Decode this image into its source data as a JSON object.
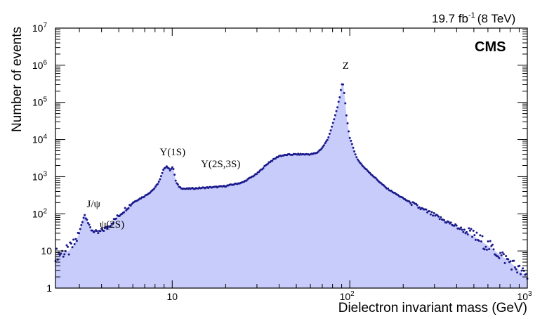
{
  "chart_data": {
    "type": "area",
    "title": "",
    "luminosity_label": "19.7 fb",
    "luminosity_exponent": "-1",
    "energy_label": "(8 TeV)",
    "experiment_label": "CMS",
    "xlabel": "Dielectron invariant mass (GeV)",
    "ylabel": "Number of events",
    "xscale": "log",
    "yscale": "log",
    "xlim": [
      2.2,
      1000
    ],
    "ylim": [
      1,
      10000000
    ],
    "x_ticks": [
      {
        "value": 10,
        "label": "10"
      },
      {
        "value": 100,
        "label": "10",
        "exp": "2"
      },
      {
        "value": 1000,
        "label": "10",
        "exp": "3"
      }
    ],
    "y_ticks": [
      {
        "value": 1,
        "label": "1"
      },
      {
        "value": 10,
        "label": "10"
      },
      {
        "value": 100,
        "label": "10",
        "exp": "2"
      },
      {
        "value": 1000,
        "label": "10",
        "exp": "3"
      },
      {
        "value": 10000,
        "label": "10",
        "exp": "4"
      },
      {
        "value": 100000,
        "label": "10",
        "exp": "5"
      },
      {
        "value": 1000000,
        "label": "10",
        "exp": "6"
      },
      {
        "value": 10000000,
        "label": "10",
        "exp": "7"
      }
    ],
    "grid": false,
    "fill_color": "#c8ccfa",
    "point_color": "#1a1a8c",
    "annotations": [
      {
        "text": "J/ψ",
        "x": 3.3,
        "y": 150
      },
      {
        "text": "ψ(2S)",
        "x": 3.9,
        "y": 42
      },
      {
        "text": "Υ(1S)",
        "x": 8.5,
        "y": 3800
      },
      {
        "text": "Υ(2S,3S)",
        "x": 14.5,
        "y": 1800
      },
      {
        "text": "Z",
        "x": 91,
        "y": 800000
      }
    ],
    "series": [
      {
        "x": [
          2.2,
          2.4,
          2.6,
          2.8,
          3.0,
          3.1,
          3.2,
          3.3,
          3.4,
          3.5,
          3.6,
          3.7,
          3.8,
          4.0,
          4.3,
          4.6,
          5.0,
          5.5,
          6.0,
          6.5,
          7.0,
          7.5,
          8.0,
          8.5,
          9.0,
          9.3,
          9.46,
          9.7,
          10.0,
          10.2,
          10.5,
          11.0,
          11.5,
          12,
          13,
          15,
          18,
          20,
          25,
          30,
          35,
          40,
          45,
          50,
          55,
          60,
          65,
          70,
          75,
          80,
          85,
          88,
          90,
          91,
          92,
          94,
          96,
          100,
          110,
          120,
          140,
          160,
          200,
          250,
          300,
          400,
          500,
          600,
          700,
          800,
          900,
          1000
        ],
        "y": [
          8,
          9,
          10,
          15,
          30,
          60,
          95,
          80,
          45,
          38,
          35,
          32,
          30,
          35,
          42,
          60,
          90,
          140,
          200,
          250,
          300,
          380,
          500,
          800,
          1700,
          1900,
          1750,
          1500,
          1800,
          1500,
          700,
          520,
          480,
          470,
          480,
          500,
          530,
          560,
          700,
          1200,
          2400,
          3600,
          3900,
          4000,
          4000,
          4000,
          4300,
          6000,
          10000,
          25000,
          70000,
          150000,
          280000,
          330000,
          280000,
          120000,
          40000,
          11000,
          3000,
          1800,
          900,
          500,
          260,
          140,
          90,
          45,
          25,
          14,
          8,
          5,
          3,
          2
        ]
      }
    ]
  }
}
